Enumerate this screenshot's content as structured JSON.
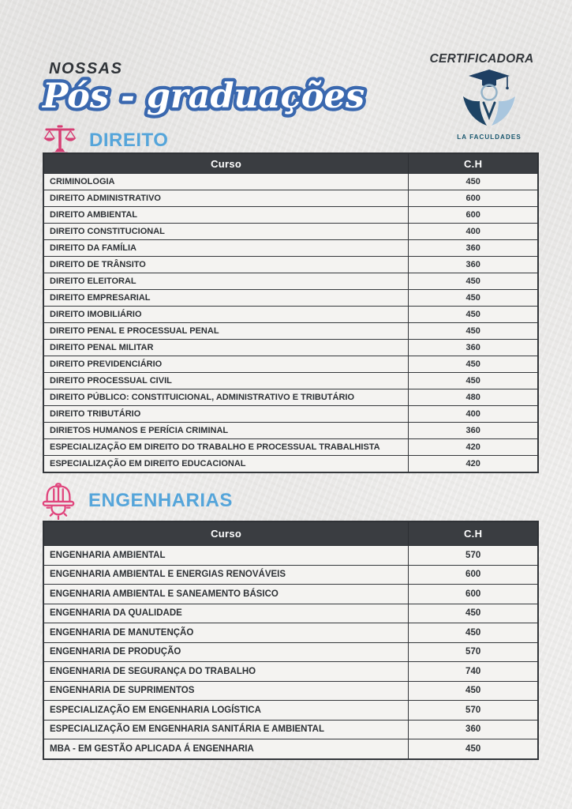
{
  "header": {
    "kicker": "NOSSAS",
    "title": "Pós - graduações",
    "certifier_label": "CERTIFICADORA",
    "logo_text": "LA FACULDADES"
  },
  "colors": {
    "accent_blue": "#55a5da",
    "title_outline_blue": "#3a68af",
    "icon_pink": "#d63e74",
    "table_header_bg": "#3a3d41",
    "logo_navy": "#1e4465",
    "logo_light_blue": "#a9c6de",
    "logo_text_teal": "#15546c",
    "paper_bg": "#edecea"
  },
  "sections": [
    {
      "title": "DIREITO",
      "icon": "scales-of-justice-icon",
      "table": {
        "columns": [
          "Curso",
          "C.H"
        ],
        "rows": [
          [
            "CRIMINOLOGIA",
            "450"
          ],
          [
            "DIREITO ADMINISTRATIVO",
            "600"
          ],
          [
            "DIREITO AMBIENTAL",
            "600"
          ],
          [
            "DIREITO CONSTITUCIONAL",
            "400"
          ],
          [
            "DIREITO DA FAMÍLIA",
            "360"
          ],
          [
            "DIREITO DE TRÂNSITO",
            "360"
          ],
          [
            "DIREITO ELEITORAL",
            "450"
          ],
          [
            "DIREITO EMPRESARIAL",
            "450"
          ],
          [
            "DIREITO IMOBILIÁRIO",
            "450"
          ],
          [
            "DIREITO PENAL E PROCESSUAL PENAL",
            "450"
          ],
          [
            "DIREITO PENAL MILITAR",
            "360"
          ],
          [
            "DIREITO PREVIDENCIÁRIO",
            "450"
          ],
          [
            "DIREITO PROCESSUAL CIVIL",
            "450"
          ],
          [
            "DIREITO PÚBLICO: CONSTITUICIONAL, ADMINISTRATIVO E TRIBUTÁRIO",
            "480"
          ],
          [
            "DIREITO TRIBUTÁRIO",
            "400"
          ],
          [
            "DIRIETOS HUMANOS E PERÍCIA CRIMINAL",
            "360"
          ],
          [
            "ESPECIALIZAÇÃO EM DIREITO DO TRABALHO E PROCESSUAL TRABALHISTA",
            "420"
          ],
          [
            "ESPECIALIZAÇÃO EM DIREITO EDUCACIONAL",
            "420"
          ]
        ]
      }
    },
    {
      "title": "ENGENHARIAS",
      "icon": "hard-hat-gear-icon",
      "table": {
        "columns": [
          "Curso",
          "C.H"
        ],
        "rows": [
          [
            "ENGENHARIA AMBIENTAL",
            "570"
          ],
          [
            "ENGENHARIA AMBIENTAL E ENERGIAS RENOVÁVEIS",
            "600"
          ],
          [
            "ENGENHARIA AMBIENTAL E SANEAMENTO BÁSICO",
            "600"
          ],
          [
            "ENGENHARIA DA QUALIDADE",
            "450"
          ],
          [
            "ENGENHARIA DE MANUTENÇÃO",
            "450"
          ],
          [
            "ENGENHARIA DE PRODUÇÃO",
            "570"
          ],
          [
            "ENGENHARIA DE SEGURANÇA DO TRABALHO",
            "740"
          ],
          [
            "ENGENHARIA DE SUPRIMENTOS",
            "450"
          ],
          [
            "ESPECIALIZAÇÃO EM ENGENHARIA LOGÍSTICA",
            "570"
          ],
          [
            "ESPECIALIZAÇÃO EM ENGENHARIA SANITÁRIA E AMBIENTAL",
            "360"
          ],
          [
            "MBA - EM GESTÃO APLICADA Á ENGENHARIA",
            "450"
          ]
        ]
      }
    }
  ]
}
